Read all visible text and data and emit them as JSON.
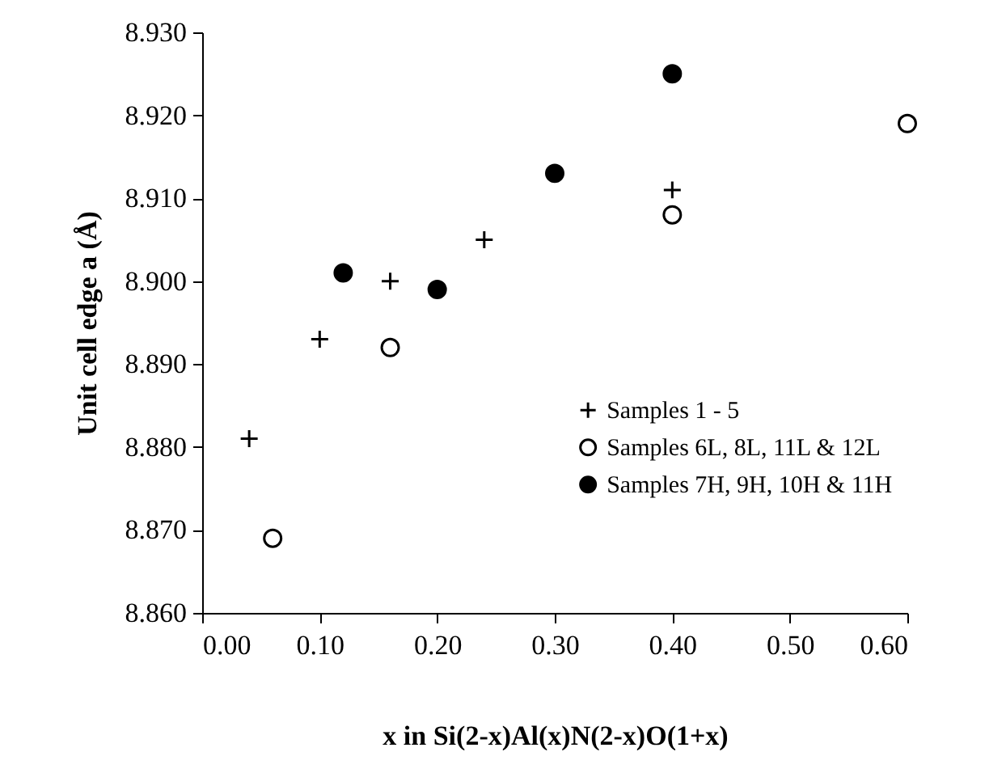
{
  "chart_data": {
    "type": "scatter",
    "xlabel": "x in Si(2-x)Al(x)N(2-x)O(1+x)",
    "ylabel": "Unit cell edge a (Å)",
    "xlim": [
      0,
      0.6
    ],
    "ylim": [
      8.86,
      8.93
    ],
    "xticks": [
      {
        "value": 0,
        "label": "0.00"
      },
      {
        "value": 0.1,
        "label": "0.10"
      },
      {
        "value": 0.2,
        "label": "0.20"
      },
      {
        "value": 0.3,
        "label": "0.30"
      },
      {
        "value": 0.4,
        "label": "0.40"
      },
      {
        "value": 0.5,
        "label": "0.50"
      },
      {
        "value": 0.6,
        "label": "0.60"
      }
    ],
    "yticks": [
      {
        "value": 8.86,
        "label": "8.860"
      },
      {
        "value": 8.87,
        "label": "8.870"
      },
      {
        "value": 8.88,
        "label": "8.880"
      },
      {
        "value": 8.89,
        "label": "8.890"
      },
      {
        "value": 8.9,
        "label": "8.900"
      },
      {
        "value": 8.91,
        "label": "8.910"
      },
      {
        "value": 8.92,
        "label": "8.920"
      },
      {
        "value": 8.93,
        "label": "8.930"
      }
    ],
    "grid": false,
    "legend": "right",
    "series": [
      {
        "name": "Samples 1 - 5",
        "color": "#000000",
        "marker": "cross",
        "x": [
          0.04,
          0.1,
          0.16,
          0.24,
          0.4
        ],
        "values": [
          8.881,
          8.893,
          8.9,
          8.905,
          8.911
        ]
      },
      {
        "name": "Samples 6L, 8L, 11L & 12L",
        "color": "#ffffff",
        "marker": "circle",
        "x": [
          0.06,
          0.16,
          0.4,
          0.6
        ],
        "values": [
          8.869,
          8.892,
          8.908,
          8.919
        ]
      },
      {
        "name": "Samples 7H, 9H, 10H & 11H",
        "color": "#000000",
        "marker": "circle",
        "x": [
          0.12,
          0.2,
          0.3,
          0.4
        ],
        "values": [
          8.901,
          8.899,
          8.913,
          8.925
        ]
      }
    ]
  }
}
